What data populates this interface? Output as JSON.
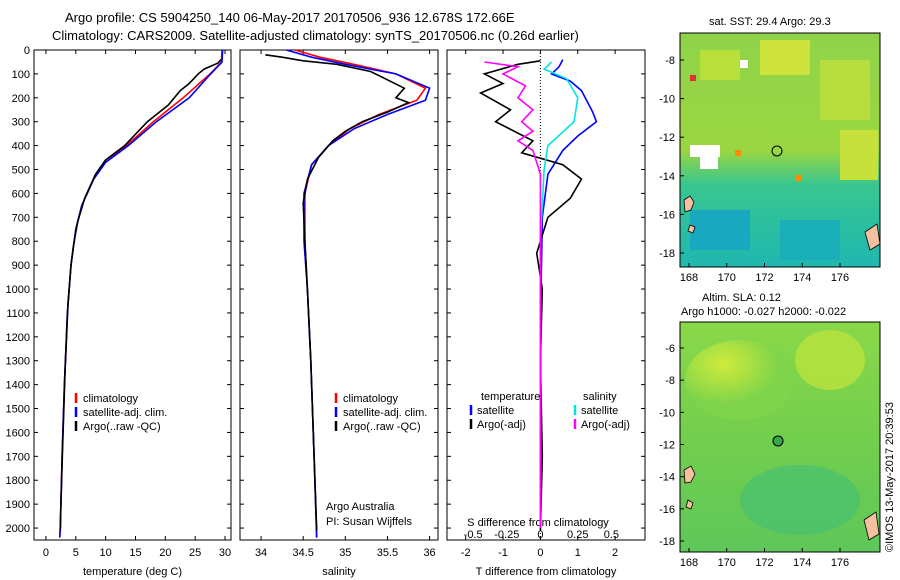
{
  "header": {
    "line1": "Argo profile: CS 5904250_140 06-May-2017 20170506_936 12.678S 172.66E",
    "line2": "Climatology: CARS2009. Satellite-adjusted climatology: synTS_20170506.nc (0.26d earlier)"
  },
  "depth_ticks": [
    0,
    100,
    200,
    300,
    400,
    500,
    600,
    700,
    800,
    900,
    1000,
    1100,
    1200,
    1300,
    1400,
    1500,
    1600,
    1700,
    1800,
    1900,
    2000
  ],
  "colors": {
    "climatology": "#ff0000",
    "satellite": "#0000ff",
    "argo": "#000000",
    "salinity_sat": "#00e5e5",
    "salinity_argo": "#ff00ff",
    "map_land": "#f5c0a0"
  },
  "chart_data": [
    {
      "type": "line",
      "xlabel": "temperature (deg C)",
      "xticks": [
        0,
        5,
        10,
        15,
        20,
        25,
        30
      ],
      "xlim": [
        -2,
        31
      ],
      "ylim": [
        2050,
        0
      ],
      "legend": [
        "climatology",
        "satellite-adj. clim.",
        "Argo(..raw -QC)"
      ],
      "series": [
        {
          "name": "climatology",
          "points": [
            [
              29.5,
              0
            ],
            [
              29.4,
              50
            ],
            [
              27.5,
              100
            ],
            [
              23,
              200
            ],
            [
              18,
              300
            ],
            [
              13.5,
              400
            ],
            [
              10,
              470
            ],
            [
              8,
              540
            ],
            [
              6,
              650
            ],
            [
              5,
              750
            ],
            [
              4.2,
              900
            ],
            [
              3.6,
              1100
            ],
            [
              3.1,
              1400
            ],
            [
              2.7,
              1700
            ],
            [
              2.4,
              2000
            ],
            [
              2.3,
              2040
            ]
          ]
        },
        {
          "name": "satellite-adj. clim.",
          "points": [
            [
              29.6,
              0
            ],
            [
              29.5,
              50
            ],
            [
              27.6,
              100
            ],
            [
              24,
              200
            ],
            [
              18.5,
              300
            ],
            [
              13.8,
              400
            ],
            [
              10,
              470
            ],
            [
              8,
              540
            ],
            [
              6,
              650
            ],
            [
              5,
              750
            ],
            [
              4.2,
              900
            ],
            [
              3.6,
              1100
            ],
            [
              3.1,
              1400
            ],
            [
              2.7,
              1700
            ],
            [
              2.4,
              2000
            ],
            [
              2.3,
              2040
            ]
          ]
        },
        {
          "name": "Argo(..raw -QC)",
          "points": [
            [
              29.3,
              40
            ],
            [
              28.8,
              55
            ],
            [
              26.5,
              80
            ],
            [
              25.5,
              100
            ],
            [
              24,
              140
            ],
            [
              22.5,
              170
            ],
            [
              20.5,
              230
            ],
            [
              17,
              300
            ],
            [
              13.2,
              400
            ],
            [
              10,
              460
            ],
            [
              8.3,
              520
            ],
            [
              6.5,
              620
            ],
            [
              5.3,
              720
            ],
            [
              4.6,
              820
            ],
            [
              4.2,
              900
            ],
            [
              3.7,
              1060
            ],
            [
              3.2,
              1350
            ],
            [
              2.8,
              1650
            ],
            [
              2.5,
              1900
            ],
            [
              2.4,
              2010
            ]
          ]
        }
      ]
    },
    {
      "type": "line",
      "xlabel": "salinity",
      "xticks": [
        34,
        34.5,
        35,
        35.5,
        36
      ],
      "xlim": [
        33.75,
        36.1
      ],
      "ylim": [
        2050,
        0
      ],
      "legend": [
        "climatology",
        "satellite-adj. clim.",
        "Argo(..raw -QC)"
      ],
      "annotation": [
        "Argo Australia",
        "PI: Susan Wijffels"
      ],
      "series": [
        {
          "name": "climatology",
          "points": [
            [
              34.4,
              0
            ],
            [
              34.7,
              30
            ],
            [
              35.1,
              60
            ],
            [
              35.6,
              100
            ],
            [
              35.95,
              160
            ],
            [
              35.85,
              210
            ],
            [
              35.4,
              270
            ],
            [
              35.05,
              330
            ],
            [
              34.8,
              400
            ],
            [
              34.6,
              480
            ],
            [
              34.52,
              600
            ],
            [
              34.52,
              800
            ],
            [
              34.55,
              1000
            ],
            [
              34.59,
              1300
            ],
            [
              34.63,
              1700
            ],
            [
              34.66,
              2040
            ]
          ]
        },
        {
          "name": "satellite-adj. clim.",
          "points": [
            [
              34.3,
              0
            ],
            [
              34.6,
              30
            ],
            [
              35.0,
              60
            ],
            [
              35.6,
              100
            ],
            [
              36.0,
              160
            ],
            [
              35.95,
              210
            ],
            [
              35.5,
              270
            ],
            [
              35.1,
              330
            ],
            [
              34.8,
              400
            ],
            [
              34.6,
              480
            ],
            [
              34.51,
              600
            ],
            [
              34.51,
              800
            ],
            [
              34.55,
              1000
            ],
            [
              34.59,
              1300
            ],
            [
              34.63,
              1700
            ],
            [
              34.66,
              2040
            ]
          ]
        },
        {
          "name": "Argo(..raw -QC)",
          "points": [
            [
              34.05,
              20
            ],
            [
              34.25,
              30
            ],
            [
              34.5,
              45
            ],
            [
              34.9,
              60
            ],
            [
              35.3,
              90
            ],
            [
              35.7,
              160
            ],
            [
              35.6,
              200
            ],
            [
              35.75,
              220
            ],
            [
              35.5,
              260
            ],
            [
              35.2,
              300
            ],
            [
              35.0,
              340
            ],
            [
              34.85,
              380
            ],
            [
              34.68,
              450
            ],
            [
              34.55,
              540
            ],
            [
              34.5,
              640
            ],
            [
              34.52,
              800
            ],
            [
              34.55,
              1000
            ],
            [
              34.59,
              1300
            ],
            [
              34.63,
              1700
            ],
            [
              34.66,
              2010
            ]
          ]
        }
      ]
    },
    {
      "type": "line",
      "xlabel": "T difference from climatology",
      "xticks": [
        -2,
        -1,
        0,
        1,
        2
      ],
      "top_label": "S difference from climatology",
      "top_ticks": [
        "-0.5",
        "-0.25",
        "0",
        "0.25",
        "0.5"
      ],
      "xlim": [
        -2.5,
        2.8
      ],
      "ylim": [
        2050,
        0
      ],
      "legend_left": [
        "temperature",
        "satellite",
        "Argo(-adj)"
      ],
      "legend_right": [
        "salinity",
        "satellite",
        "Argo(-adj)"
      ],
      "series": [
        {
          "name": "satellite",
          "points": [
            [
              0.6,
              40
            ],
            [
              0.5,
              70
            ],
            [
              0.3,
              100
            ],
            [
              0.8,
              130
            ],
            [
              1.1,
              170
            ],
            [
              1.4,
              260
            ],
            [
              1.5,
              300
            ],
            [
              1.0,
              360
            ],
            [
              0.6,
              420
            ],
            [
              0.2,
              520
            ],
            [
              0.05,
              700
            ],
            [
              0.02,
              1000
            ],
            [
              0,
              1500
            ],
            [
              0,
              2000
            ]
          ]
        },
        {
          "name": "Argo(-adj)",
          "points": [
            [
              0,
              45
            ],
            [
              -0.6,
              60
            ],
            [
              -1.5,
              100
            ],
            [
              -1.0,
              140
            ],
            [
              -1.6,
              180
            ],
            [
              -0.8,
              250
            ],
            [
              -1.2,
              300
            ],
            [
              -0.2,
              380
            ],
            [
              -0.5,
              430
            ],
            [
              0.6,
              480
            ],
            [
              1.1,
              540
            ],
            [
              0.8,
              620
            ],
            [
              0.2,
              700
            ],
            [
              -0.1,
              850
            ],
            [
              0.05,
              1000
            ],
            [
              0,
              1300
            ],
            [
              0.05,
              1700
            ],
            [
              0,
              2010
            ]
          ]
        },
        {
          "name": "salinity satellite",
          "points": [
            [
              0.3,
              50
            ],
            [
              0.1,
              80
            ],
            [
              0.7,
              120
            ],
            [
              1.0,
              200
            ],
            [
              0.9,
              300
            ],
            [
              0.2,
              400
            ],
            [
              0.1,
              500
            ],
            [
              0,
              800
            ],
            [
              0,
              1400
            ],
            [
              0,
              2000
            ]
          ]
        },
        {
          "name": "salinity Argo(-adj)",
          "points": [
            [
              -1.5,
              50
            ],
            [
              -0.6,
              70
            ],
            [
              -1.0,
              100
            ],
            [
              -0.4,
              150
            ],
            [
              -0.6,
              200
            ],
            [
              -0.2,
              250
            ],
            [
              -0.5,
              300
            ],
            [
              -0.2,
              340
            ],
            [
              -0.6,
              380
            ],
            [
              -0.2,
              420
            ],
            [
              0,
              520
            ],
            [
              0,
              800
            ],
            [
              0,
              2000
            ]
          ]
        }
      ]
    }
  ],
  "maps": [
    {
      "title": "sat. SST: 29.4 Argo: 29.3",
      "yticks": [
        "-8",
        "-10",
        "-12",
        "-14",
        "-16",
        "-18"
      ],
      "xticks": [
        "168",
        "170",
        "172",
        "174",
        "176"
      ]
    },
    {
      "title": "Altim. SLA: 0.12",
      "subtitle": "Argo h1000: -0.027 h2000: -0.022",
      "yticks": [
        "-6",
        "-8",
        "-10",
        "-12",
        "-14",
        "-16",
        "-18"
      ],
      "xticks": [
        "168",
        "170",
        "172",
        "174",
        "176"
      ]
    }
  ],
  "side_label": "©IMOS 13-May-2017 20:39:53"
}
